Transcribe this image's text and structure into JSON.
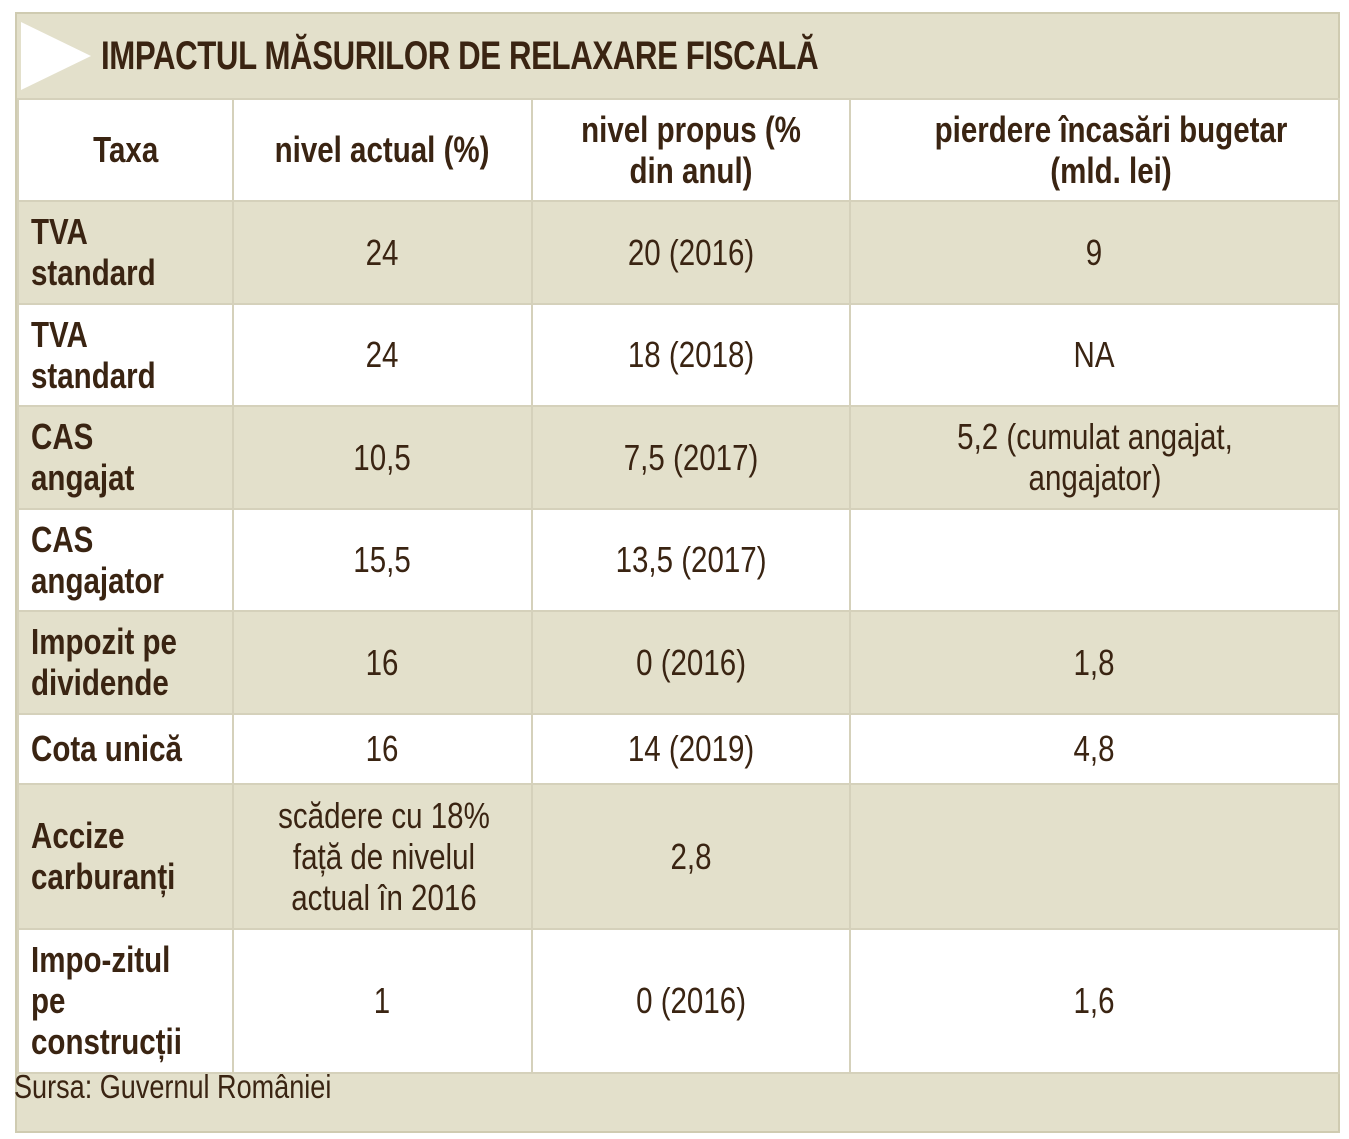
{
  "title": "IMPACTUL MĂSURILOR DE RELAXARE FISCALĂ",
  "columns": [
    "Taxa",
    "nivel actual (%)",
    "nivel propus (% din anul)",
    "pierdere încasări bugetar (mld. lei)"
  ],
  "rows": [
    {
      "taxa": "TVA standard",
      "nivel_actual": "24",
      "nivel_propus": "20 (2016)",
      "pierdere": "9"
    },
    {
      "taxa": "TVA standard",
      "nivel_actual": "24",
      "nivel_propus": "18 (2018)",
      "pierdere": "NA"
    },
    {
      "taxa": "CAS angajat",
      "nivel_actual": "10,5",
      "nivel_propus": "7,5 (2017)",
      "pierdere": "5,2 (cumulat angajat, angajator)"
    },
    {
      "taxa": "CAS angajator",
      "nivel_actual": "15,5",
      "nivel_propus": "13,5 (2017)",
      "pierdere": ""
    },
    {
      "taxa": "Impozit pe dividende",
      "nivel_actual": "16",
      "nivel_propus": "0 (2016)",
      "pierdere": "1,8"
    },
    {
      "taxa": "Cota unică",
      "nivel_actual": "16",
      "nivel_propus": "14 (2019)",
      "pierdere": "4,8"
    },
    {
      "taxa": "Accize carburanți",
      "nivel_actual": "scădere cu 18% față de nivelul actual în 2016",
      "nivel_propus": "2,8",
      "pierdere": ""
    },
    {
      "taxa": "Impo-zitul pe construcții",
      "nivel_actual": "1",
      "nivel_propus": "0 (2016)",
      "pierdere": "1,6"
    }
  ],
  "source": "Sursa: Guvernul României",
  "colors": {
    "background": "#e3e0cb",
    "text": "#3a2412",
    "white": "#ffffff"
  }
}
